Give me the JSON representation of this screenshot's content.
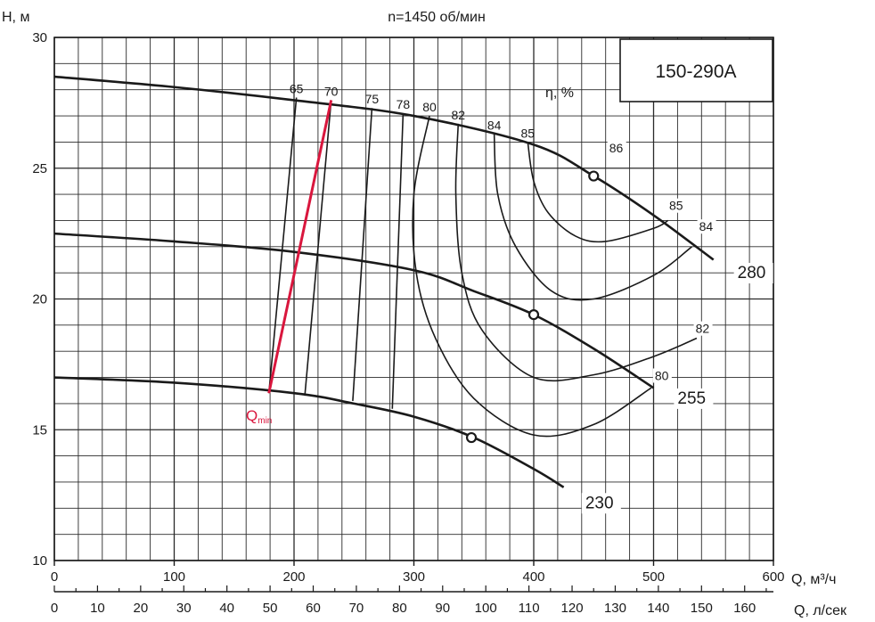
{
  "chart_data": {
    "type": "line",
    "title": "n=1450 об/мин",
    "model": "150-290A",
    "ylabel": "H, м",
    "xlabel": "Q, м³/ч",
    "x2label": "Q, л/сек",
    "eta_label": "η, %",
    "xlim": [
      0,
      600
    ],
    "ylim": [
      10,
      30
    ],
    "x_ticks": [
      0,
      100,
      200,
      300,
      400,
      500,
      600
    ],
    "y_ticks": [
      10,
      15,
      20,
      25,
      30
    ],
    "x2_ticks": [
      0,
      10,
      20,
      30,
      40,
      50,
      60,
      70,
      80,
      90,
      100,
      110,
      120,
      130,
      140,
      150,
      160
    ],
    "grid": true,
    "series": [
      {
        "name": "280",
        "x": [
          0,
          100,
          200,
          300,
          400,
          450,
          500,
          550
        ],
        "y": [
          28.5,
          28.1,
          27.6,
          27.0,
          25.9,
          24.7,
          23.2,
          21.5
        ]
      },
      {
        "name": "255",
        "x": [
          0,
          100,
          200,
          300,
          350,
          400,
          450,
          500
        ],
        "y": [
          22.5,
          22.2,
          21.8,
          21.1,
          20.3,
          19.4,
          18.1,
          16.6
        ]
      },
      {
        "name": "230",
        "x": [
          0,
          100,
          200,
          250,
          300,
          350,
          400,
          425
        ],
        "y": [
          17.0,
          16.8,
          16.4,
          16.0,
          15.5,
          14.7,
          13.5,
          12.8
        ]
      }
    ],
    "bep_points": [
      {
        "x": 450,
        "y": 24.7
      },
      {
        "x": 400,
        "y": 19.4
      },
      {
        "x": 348,
        "y": 14.7
      }
    ],
    "efficiency_contours": [
      {
        "label": "65",
        "x": [
          202,
          179
        ],
        "y": [
          27.7,
          16.4
        ]
      },
      {
        "label": "70",
        "x": [
          231,
          209
        ],
        "y": [
          27.6,
          16.3
        ]
      },
      {
        "label": "75",
        "x": [
          265,
          249
        ],
        "y": [
          27.3,
          16.1
        ]
      },
      {
        "label": "78",
        "x": [
          291,
          282
        ],
        "y": [
          27.1,
          15.8
        ]
      },
      {
        "label": "80",
        "x": [
          313,
          300,
          302,
          318,
          350,
          400,
          450,
          498
        ],
        "y": [
          27.0,
          24.0,
          21.0,
          18.5,
          16.2,
          14.8,
          15.2,
          16.6
        ]
      },
      {
        "label": "82",
        "x": [
          337,
          335,
          340,
          357,
          400,
          450,
          500,
          536
        ],
        "y": [
          26.7,
          24.0,
          21.0,
          18.8,
          17.0,
          17.1,
          17.8,
          18.5
        ]
      },
      {
        "label": "84",
        "x": [
          367,
          370,
          385,
          415,
          450,
          500,
          532
        ],
        "y": [
          26.3,
          24.0,
          22.0,
          20.3,
          20.0,
          20.9,
          22.0
        ]
      },
      {
        "label": "85",
        "x": [
          395,
          400,
          412,
          435,
          460,
          500,
          512
        ],
        "y": [
          26.0,
          24.5,
          23.3,
          22.4,
          22.2,
          22.7,
          23.0
        ]
      }
    ],
    "qmin": {
      "label_main": "Q",
      "label_sub": "min",
      "x": [
        179,
        231
      ],
      "y": [
        16.4,
        27.6
      ]
    },
    "curve_labels": [
      {
        "text": "86",
        "x": 463,
        "y": 25.6
      },
      {
        "text": "85",
        "x": 513,
        "y": 23.4
      },
      {
        "text": "84",
        "x": 538,
        "y": 22.6
      },
      {
        "text": "82",
        "x": 535,
        "y": 18.7
      },
      {
        "text": "80",
        "x": 501,
        "y": 16.9
      },
      {
        "text": "280",
        "x": 570,
        "y": 20.8
      },
      {
        "text": "255",
        "x": 520,
        "y": 16.0
      },
      {
        "text": "230",
        "x": 443,
        "y": 12.0
      }
    ],
    "colors": {
      "curve": "#1a1a1a",
      "grid": "#2a2a2a",
      "qmin": "#d9163d"
    }
  }
}
